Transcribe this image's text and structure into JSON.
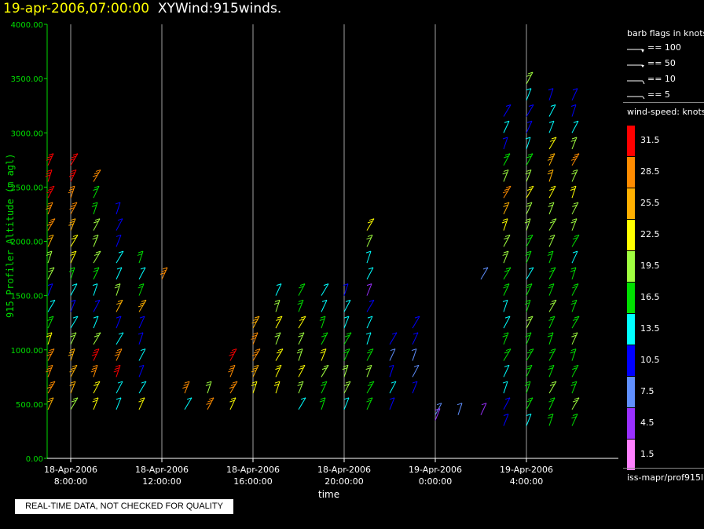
{
  "header": {
    "timestamp": "19-apr-2006,07:00:00",
    "name": "XYWind:915winds."
  },
  "footer": {
    "quality_note": "REAL-TIME DATA, NOT CHECKED FOR QUALITY",
    "source_id": "iss-mapr/prof915l"
  },
  "legend": {
    "flags_title": "barb flags in knots",
    "flags": [
      "== 100",
      "== 50",
      "== 10",
      "== 5"
    ],
    "speed_title": "wind-speed: knots",
    "speed_bins": [
      {
        "label": "31.5",
        "color": "#ff0000"
      },
      {
        "label": "28.5",
        "color": "#ff8c00"
      },
      {
        "label": "25.5",
        "color": "#ffb000"
      },
      {
        "label": "22.5",
        "color": "#ffff00"
      },
      {
        "label": "19.5",
        "color": "#a0ff40"
      },
      {
        "label": "16.5",
        "color": "#00e000"
      },
      {
        "label": "13.5",
        "color": "#00ffff"
      },
      {
        "label": "10.5",
        "color": "#0000ff"
      },
      {
        "label": "7.5",
        "color": "#6090ff"
      },
      {
        "label": "4.5",
        "color": "#9a30ff"
      },
      {
        "label": "1.5",
        "color": "#ff80ff"
      }
    ]
  },
  "chart_data": {
    "type": "scatter",
    "ylabel": "915 Profiler Altitude (m agl)",
    "xlabel": "time",
    "ylim": [
      0,
      4000
    ],
    "yticks": [
      "0.00",
      "500.00",
      "1000.00",
      "1500.00",
      "2000.00",
      "2500.00",
      "3000.00",
      "3500.00",
      "4000.00"
    ],
    "xticks": [
      {
        "date": "18-Apr-2006",
        "time": "8:00:00"
      },
      {
        "date": "18-Apr-2006",
        "time": "12:00:00"
      },
      {
        "date": "18-Apr-2006",
        "time": "16:00:00"
      },
      {
        "date": "18-Apr-2006",
        "time": "20:00:00"
      },
      {
        "date": "19-Apr-2006",
        "time": "0:00:00"
      },
      {
        "date": "19-Apr-2006",
        "time": "4:00:00"
      }
    ],
    "grid": "vertical",
    "axis_color": "#00dd00",
    "series": [
      {
        "x": "18-Apr-2006 07:00",
        "altitudes": [
          450,
          600,
          750,
          900,
          1050,
          1200,
          1350,
          1500,
          1650,
          1800,
          1950,
          2100,
          2250,
          2400,
          2550,
          2700
        ],
        "speeds": [
          24,
          27,
          29,
          28,
          22,
          16,
          12,
          10,
          18,
          20,
          24,
          27,
          29,
          30,
          31,
          32
        ]
      },
      {
        "x": "18-Apr-2006 08:00",
        "altitudes": [
          450,
          600,
          750,
          900,
          1050,
          1200,
          1350,
          1500,
          1650,
          1800,
          1950,
          2100,
          2250,
          2400,
          2550,
          2700
        ],
        "speeds": [
          20,
          24,
          26,
          25,
          18,
          14,
          11,
          12,
          17,
          21,
          22,
          25,
          27,
          28,
          30,
          31
        ]
      },
      {
        "x": "18-Apr-2006 09:00",
        "altitudes": [
          450,
          600,
          750,
          900,
          1050,
          1200,
          1350,
          1500,
          1650,
          1800,
          1950,
          2100,
          2250,
          2400,
          2550
        ],
        "speeds": [
          21,
          22,
          27,
          30,
          18,
          13,
          11,
          14,
          15,
          18,
          19,
          20,
          17,
          15,
          29
        ]
      },
      {
        "x": "18-Apr-2006 10:00",
        "altitudes": [
          450,
          600,
          750,
          900,
          1050,
          1200,
          1350,
          1500,
          1650,
          1800,
          1950,
          2100,
          2250
        ],
        "speeds": [
          12,
          14,
          30,
          28,
          12,
          11,
          24,
          20,
          12,
          14,
          11,
          10,
          11
        ]
      },
      {
        "x": "18-Apr-2006 11:00",
        "altitudes": [
          450,
          600,
          750,
          900,
          1050,
          1200,
          1350,
          1500,
          1650,
          1800
        ],
        "speeds": [
          21,
          13,
          11,
          12,
          10,
          11,
          26,
          17,
          14,
          15
        ]
      },
      {
        "x": "18-Apr-2006 12:00",
        "altitudes": [
          1650
        ],
        "speeds": [
          28
        ]
      },
      {
        "x": "18-Apr-2006 13:00",
        "altitudes": [
          450,
          600
        ],
        "speeds": [
          14,
          29
        ]
      },
      {
        "x": "18-Apr-2006 14:00",
        "altitudes": [
          450,
          600
        ],
        "speeds": [
          28,
          18
        ]
      },
      {
        "x": "18-Apr-2006 15:00",
        "altitudes": [
          450,
          600,
          750,
          900
        ],
        "speeds": [
          22,
          29,
          27,
          31
        ]
      },
      {
        "x": "18-Apr-2006 16:00",
        "altitudes": [
          600,
          750,
          900,
          1050,
          1200
        ],
        "speeds": [
          22,
          26,
          28,
          27,
          25
        ]
      },
      {
        "x": "18-Apr-2006 17:00",
        "altitudes": [
          600,
          750,
          900,
          1050,
          1200,
          1350,
          1500
        ],
        "speeds": [
          21,
          23,
          22,
          20,
          22,
          19,
          14
        ]
      },
      {
        "x": "18-Apr-2006 18:00",
        "altitudes": [
          450,
          600,
          750,
          900,
          1050,
          1200,
          1350,
          1500
        ],
        "speeds": [
          14,
          19,
          22,
          20,
          18,
          21,
          17,
          16
        ]
      },
      {
        "x": "18-Apr-2006 19:00",
        "altitudes": [
          450,
          600,
          750,
          900,
          1050,
          1200,
          1350,
          1500
        ],
        "speeds": [
          15,
          17,
          19,
          21,
          16,
          15,
          13,
          12
        ]
      },
      {
        "x": "18-Apr-2006 20:00",
        "altitudes": [
          450,
          600,
          750,
          900,
          1050,
          1200,
          1350,
          1500
        ],
        "speeds": [
          12,
          18,
          20,
          17,
          16,
          14,
          12,
          11
        ]
      },
      {
        "x": "18-Apr-2006 21:00",
        "altitudes": [
          450,
          600,
          750,
          900,
          1050,
          1200,
          1350,
          1500,
          1650,
          1800,
          1950,
          2100
        ],
        "speeds": [
          16,
          17,
          19,
          15,
          14,
          13,
          10,
          4,
          12,
          13,
          18,
          22
        ]
      },
      {
        "x": "18-Apr-2006 22:00",
        "altitudes": [
          450,
          600,
          750,
          900,
          1050
        ],
        "speeds": [
          10,
          12,
          11,
          8,
          9
        ]
      },
      {
        "x": "18-Apr-2006 23:00",
        "altitudes": [
          600,
          750,
          900,
          1050,
          1200
        ],
        "speeds": [
          9,
          7,
          8,
          10,
          9
        ]
      },
      {
        "x": "19-Apr-2006 00:00",
        "altitudes": [
          350,
          400
        ],
        "speeds": [
          5,
          6
        ]
      },
      {
        "x": "19-Apr-2006 01:00",
        "altitudes": [
          400
        ],
        "speeds": [
          6
        ]
      },
      {
        "x": "19-Apr-2006 02:00",
        "altitudes": [
          400,
          1650
        ],
        "speeds": [
          5,
          8
        ]
      },
      {
        "x": "19-Apr-2006 03:00",
        "altitudes": [
          300,
          450,
          600,
          750,
          900,
          1050,
          1200,
          1350,
          1500,
          1650,
          1800,
          1950,
          2100,
          2250,
          2400,
          2550,
          2700,
          2850,
          3000,
          3150
        ],
        "speeds": [
          10,
          11,
          12,
          14,
          15,
          17,
          13,
          14,
          16,
          17,
          18,
          19,
          22,
          24,
          27,
          20,
          17,
          11,
          12,
          10
        ]
      },
      {
        "x": "19-Apr-2006 04:00",
        "altitudes": [
          300,
          450,
          600,
          750,
          900,
          1050,
          1200,
          1350,
          1500,
          1650,
          1800,
          1950,
          2100,
          2250,
          2400,
          2550,
          2700,
          2850,
          3000,
          3150,
          3300,
          3450
        ],
        "speeds": [
          14,
          16,
          17,
          15,
          16,
          17,
          18,
          16,
          15,
          14,
          16,
          17,
          18,
          19,
          22,
          20,
          15,
          12,
          11,
          10,
          12,
          19
        ]
      },
      {
        "x": "19-Apr-2006 05:00",
        "altitudes": [
          300,
          450,
          600,
          750,
          900,
          1050,
          1200,
          1350,
          1500,
          1650,
          1800,
          1950,
          2100,
          2250,
          2400,
          2550,
          2700,
          2850,
          3000,
          3150,
          3300
        ],
        "speeds": [
          16,
          17,
          18,
          17,
          16,
          16,
          17,
          18,
          17,
          16,
          17,
          18,
          19,
          20,
          22,
          24,
          26,
          22,
          13,
          12,
          11
        ]
      },
      {
        "x": "19-Apr-2006 06:00",
        "altitudes": [
          300,
          450,
          600,
          750,
          900,
          1050,
          1200,
          1350,
          1500,
          1650,
          1800,
          1950,
          2100,
          2250,
          2400,
          2550,
          2700,
          2850,
          3000,
          3150,
          3300
        ],
        "speeds": [
          17,
          18,
          17,
          16,
          17,
          18,
          17,
          16,
          16,
          15,
          14,
          17,
          18,
          19,
          22,
          20,
          27,
          18,
          13,
          11,
          10
        ]
      }
    ]
  }
}
